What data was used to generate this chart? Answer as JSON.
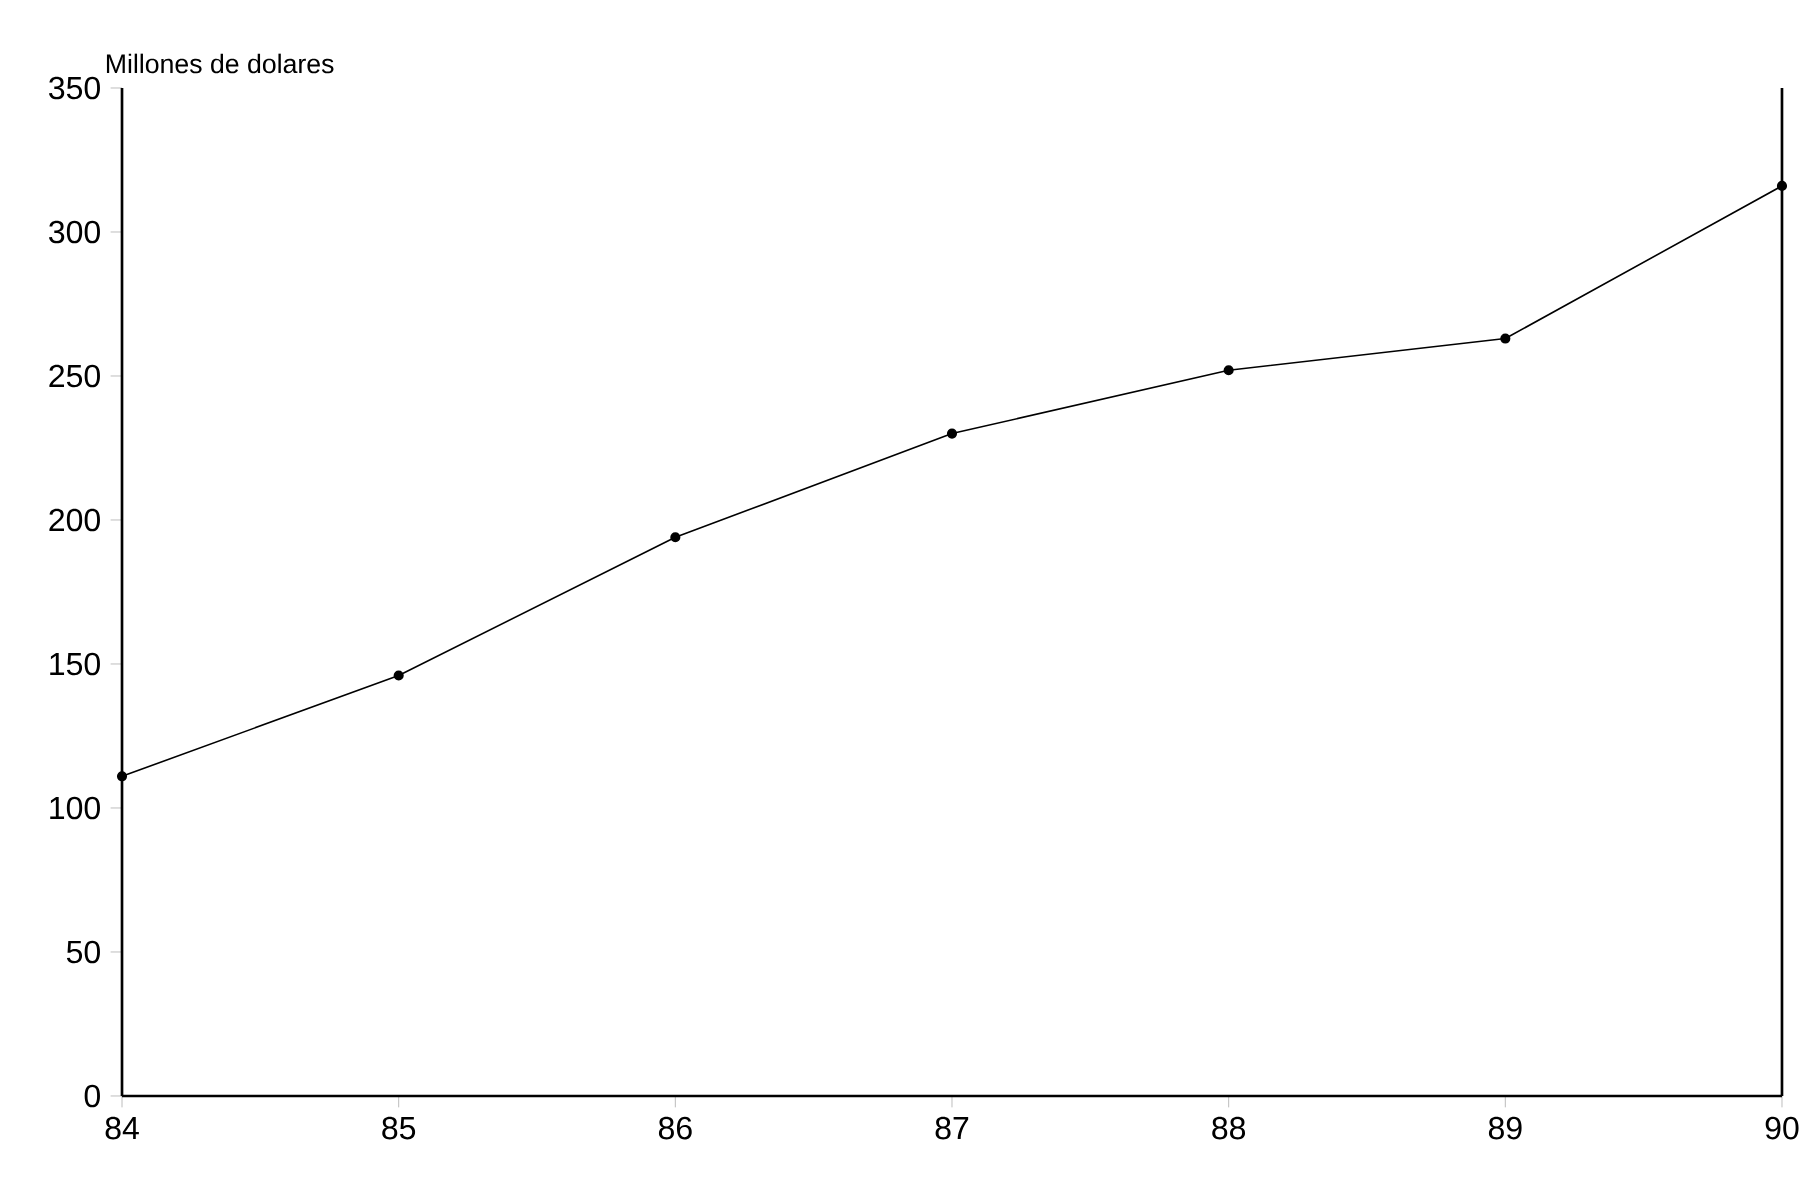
{
  "chart_data": {
    "type": "line",
    "ylabel": "Millones de dolares",
    "x": [
      84,
      85,
      86,
      87,
      88,
      89,
      90
    ],
    "values": [
      111,
      146,
      194,
      230,
      252,
      263,
      316
    ],
    "color": "#000000",
    "marker": "circle",
    "line_style": "solid",
    "xlim": [
      84,
      90
    ],
    "xticks": [
      84,
      85,
      86,
      87,
      88,
      89,
      90
    ],
    "ylim": [
      0,
      350
    ],
    "yticks": [
      0,
      50,
      100,
      150,
      200,
      250,
      300,
      350
    ]
  }
}
